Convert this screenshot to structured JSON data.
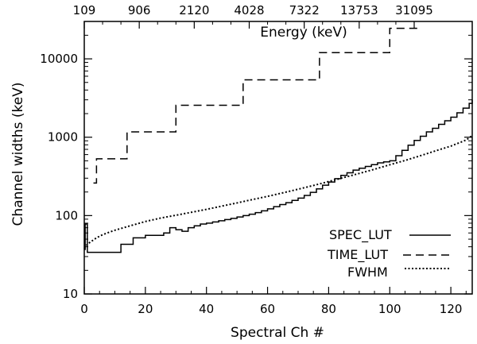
{
  "chart_data": {
    "type": "line",
    "title": "",
    "xlabel": "Spectral Ch #",
    "ylabel": "Channel widths (keV)",
    "x2label": "Energy (keV)",
    "xlim": [
      0,
      127
    ],
    "ylim": [
      10,
      30000
    ],
    "yscale": "log",
    "x_ticks": [
      {
        "value": 0,
        "label": "0"
      },
      {
        "value": 20,
        "label": "20"
      },
      {
        "value": 40,
        "label": "40"
      },
      {
        "value": 60,
        "label": "60"
      },
      {
        "value": 80,
        "label": "80"
      },
      {
        "value": 100,
        "label": "100"
      },
      {
        "value": 120,
        "label": "120"
      }
    ],
    "x2_ticks": [
      {
        "value": 0,
        "label": "109"
      },
      {
        "value": 18,
        "label": "906"
      },
      {
        "value": 36,
        "label": "2120"
      },
      {
        "value": 54,
        "label": "4028"
      },
      {
        "value": 72,
        "label": "7322"
      },
      {
        "value": 90,
        "label": "13753"
      },
      {
        "value": 108,
        "label": "31095"
      }
    ],
    "y_ticks": [
      {
        "value": 10,
        "label": "10"
      },
      {
        "value": 100,
        "label": "100"
      },
      {
        "value": 1000,
        "label": "1000"
      },
      {
        "value": 10000,
        "label": "10000"
      }
    ],
    "grid": false,
    "legend_position": "bottom-right",
    "series": [
      {
        "name": "SPEC_LUT",
        "style": "solid",
        "x": [
          0,
          0.3,
          1,
          11,
          12,
          16,
          20,
          26,
          28,
          30,
          32,
          34,
          36,
          38,
          40,
          42,
          44,
          46,
          48,
          50,
          52,
          54,
          56,
          58,
          60,
          62,
          64,
          66,
          68,
          70,
          72,
          74,
          76,
          78,
          80,
          82,
          84,
          86,
          88,
          90,
          92,
          94,
          96,
          98,
          100,
          102,
          104,
          106,
          108,
          110,
          112,
          114,
          116,
          118,
          120,
          122,
          124,
          126,
          127
        ],
        "y": [
          37,
          78,
          34,
          34,
          43,
          52,
          56,
          60,
          70,
          66,
          63,
          70,
          74,
          78,
          80,
          83,
          86,
          89,
          92,
          96,
          100,
          104,
          109,
          115,
          122,
          130,
          138,
          146,
          156,
          167,
          181,
          198,
          219,
          244,
          268,
          296,
          326,
          352,
          380,
          402,
          424,
          446,
          470,
          485,
          500,
          580,
          680,
          790,
          910,
          1030,
          1170,
          1300,
          1460,
          1620,
          1800,
          2050,
          2350,
          2700,
          3000
        ]
      },
      {
        "name": "TIME_LUT",
        "style": "dashed",
        "x": [
          3,
          4,
          14,
          30,
          52,
          77,
          100,
          110
        ],
        "y": [
          260,
          530,
          1170,
          2560,
          5400,
          12000,
          24500,
          24500
        ]
      },
      {
        "name": "FWHM",
        "style": "dotted",
        "x": [
          0,
          1,
          2,
          4,
          6,
          8,
          10,
          15,
          20,
          25,
          30,
          35,
          40,
          45,
          50,
          55,
          60,
          65,
          70,
          75,
          80,
          85,
          90,
          95,
          100,
          105,
          110,
          115,
          120,
          125,
          127
        ],
        "y": [
          38,
          43,
          46,
          52,
          57,
          61,
          65,
          74,
          84,
          93,
          101,
          110,
          120,
          132,
          145,
          160,
          176,
          195,
          217,
          242,
          272,
          306,
          345,
          390,
          445,
          505,
          580,
          670,
          770,
          920,
          1050
        ]
      }
    ]
  }
}
